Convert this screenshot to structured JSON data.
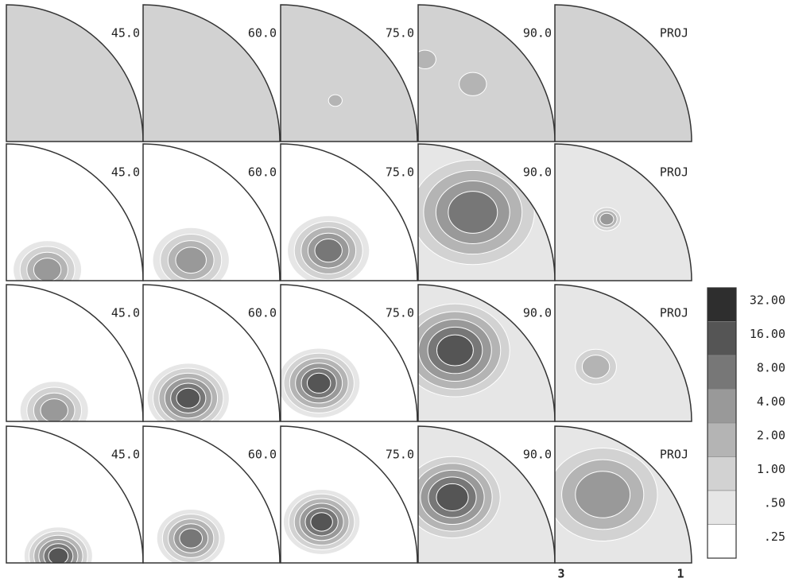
{
  "panels": {
    "rows": [
      [
        "45.0",
        "60.0",
        "75.0",
        "90.0",
        "PROJ"
      ],
      [
        "45.0",
        "60.0",
        "75.0",
        "90.0",
        "PROJ"
      ],
      [
        "45.0",
        "60.0",
        "75.0",
        "90.0",
        "PROJ"
      ],
      [
        "45.0",
        "60.0",
        "75.0",
        "90.0",
        "PROJ"
      ]
    ]
  },
  "axis_labels": [
    "3",
    "1"
  ],
  "legend": {
    "levels": [
      {
        "label": "32.00",
        "color": "#2e2e2e"
      },
      {
        "label": "16.00",
        "color": "#555555"
      },
      {
        "label": "8.00",
        "color": "#777777"
      },
      {
        "label": "4.00",
        "color": "#999999"
      },
      {
        "label": "2.00",
        "color": "#b4b4b4"
      },
      {
        "label": "1.00",
        "color": "#d2d2d2"
      },
      {
        "label": ".50",
        "color": "#e6e6e6"
      },
      {
        "label": ".25",
        "color": "#ffffff"
      }
    ]
  }
}
